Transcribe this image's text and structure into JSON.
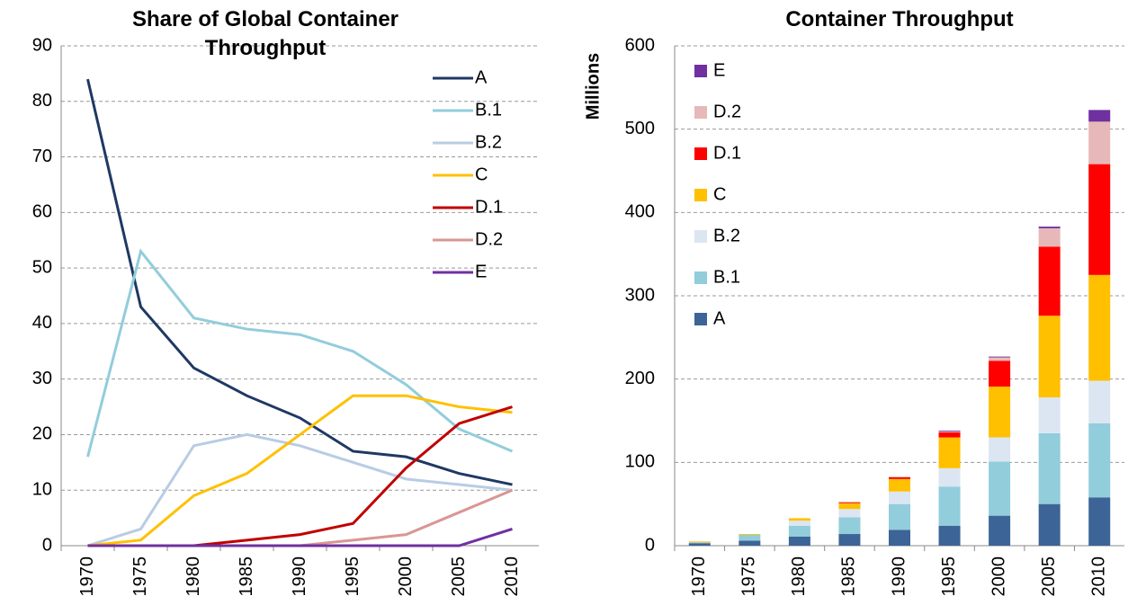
{
  "chart_data": [
    {
      "type": "line",
      "title": "Share of Global Container Throughput",
      "categories": [
        "1970",
        "1975",
        "1980",
        "1985",
        "1990",
        "1995",
        "2000",
        "2005",
        "2010"
      ],
      "ylim": [
        0,
        90
      ],
      "yticks": [
        0,
        10,
        20,
        30,
        40,
        50,
        60,
        70,
        80,
        90
      ],
      "grid": true,
      "legend": "top-right",
      "series": [
        {
          "name": "A",
          "color": "#1f3864",
          "values": [
            84,
            43,
            32,
            27,
            23,
            17,
            16,
            13,
            11
          ]
        },
        {
          "name": "B.1",
          "color": "#92cddc",
          "values": [
            16,
            53,
            41,
            39,
            38,
            35,
            29,
            21,
            17
          ]
        },
        {
          "name": "B.2",
          "color": "#b8cce4",
          "values": [
            0,
            3,
            18,
            20,
            18,
            15,
            12,
            11,
            10
          ]
        },
        {
          "name": "C",
          "color": "#ffc000",
          "values": [
            0,
            1,
            9,
            13,
            20,
            27,
            27,
            25,
            24
          ]
        },
        {
          "name": "D.1",
          "color": "#c00000",
          "values": [
            0,
            0,
            0,
            1,
            2,
            4,
            14,
            22,
            25
          ]
        },
        {
          "name": "D.2",
          "color": "#d99694",
          "values": [
            0,
            0,
            0,
            0,
            0,
            1,
            2,
            6,
            10
          ]
        },
        {
          "name": "E",
          "color": "#7030a0",
          "values": [
            0,
            0,
            0,
            0,
            0,
            0,
            0,
            0,
            3
          ]
        }
      ]
    },
    {
      "type": "bar",
      "stacked": true,
      "title": "Container Throughput",
      "y_label": "Millions",
      "categories": [
        "1970",
        "1975",
        "1980",
        "1985",
        "1990",
        "1995",
        "2000",
        "2005",
        "2010"
      ],
      "ylim": [
        0,
        600
      ],
      "yticks": [
        0,
        100,
        200,
        300,
        400,
        500,
        600
      ],
      "grid": true,
      "legend": "top-left",
      "series": [
        {
          "name": "A",
          "color": "#3c6496",
          "values": [
            3,
            6,
            11,
            14,
            19,
            24,
            36,
            50,
            58
          ]
        },
        {
          "name": "B.1",
          "color": "#92cddc",
          "values": [
            1,
            7,
            13,
            20,
            31,
            47,
            65,
            85,
            89
          ]
        },
        {
          "name": "B.2",
          "color": "#dce6f2",
          "values": [
            0,
            0,
            6,
            10,
            15,
            22,
            29,
            43,
            51
          ]
        },
        {
          "name": "C",
          "color": "#ffc000",
          "values": [
            1,
            1,
            3,
            7,
            15,
            37,
            61,
            98,
            127
          ]
        },
        {
          "name": "D.1",
          "color": "#ff0000",
          "values": [
            0,
            0,
            0,
            1,
            2,
            6,
            31,
            83,
            133
          ]
        },
        {
          "name": "D.2",
          "color": "#e6b9b8",
          "values": [
            0,
            0,
            0,
            1,
            1,
            1,
            4,
            22,
            51
          ]
        },
        {
          "name": "E",
          "color": "#7030a0",
          "values": [
            0,
            0,
            0,
            0,
            0,
            1,
            1,
            2,
            14
          ]
        }
      ]
    }
  ]
}
